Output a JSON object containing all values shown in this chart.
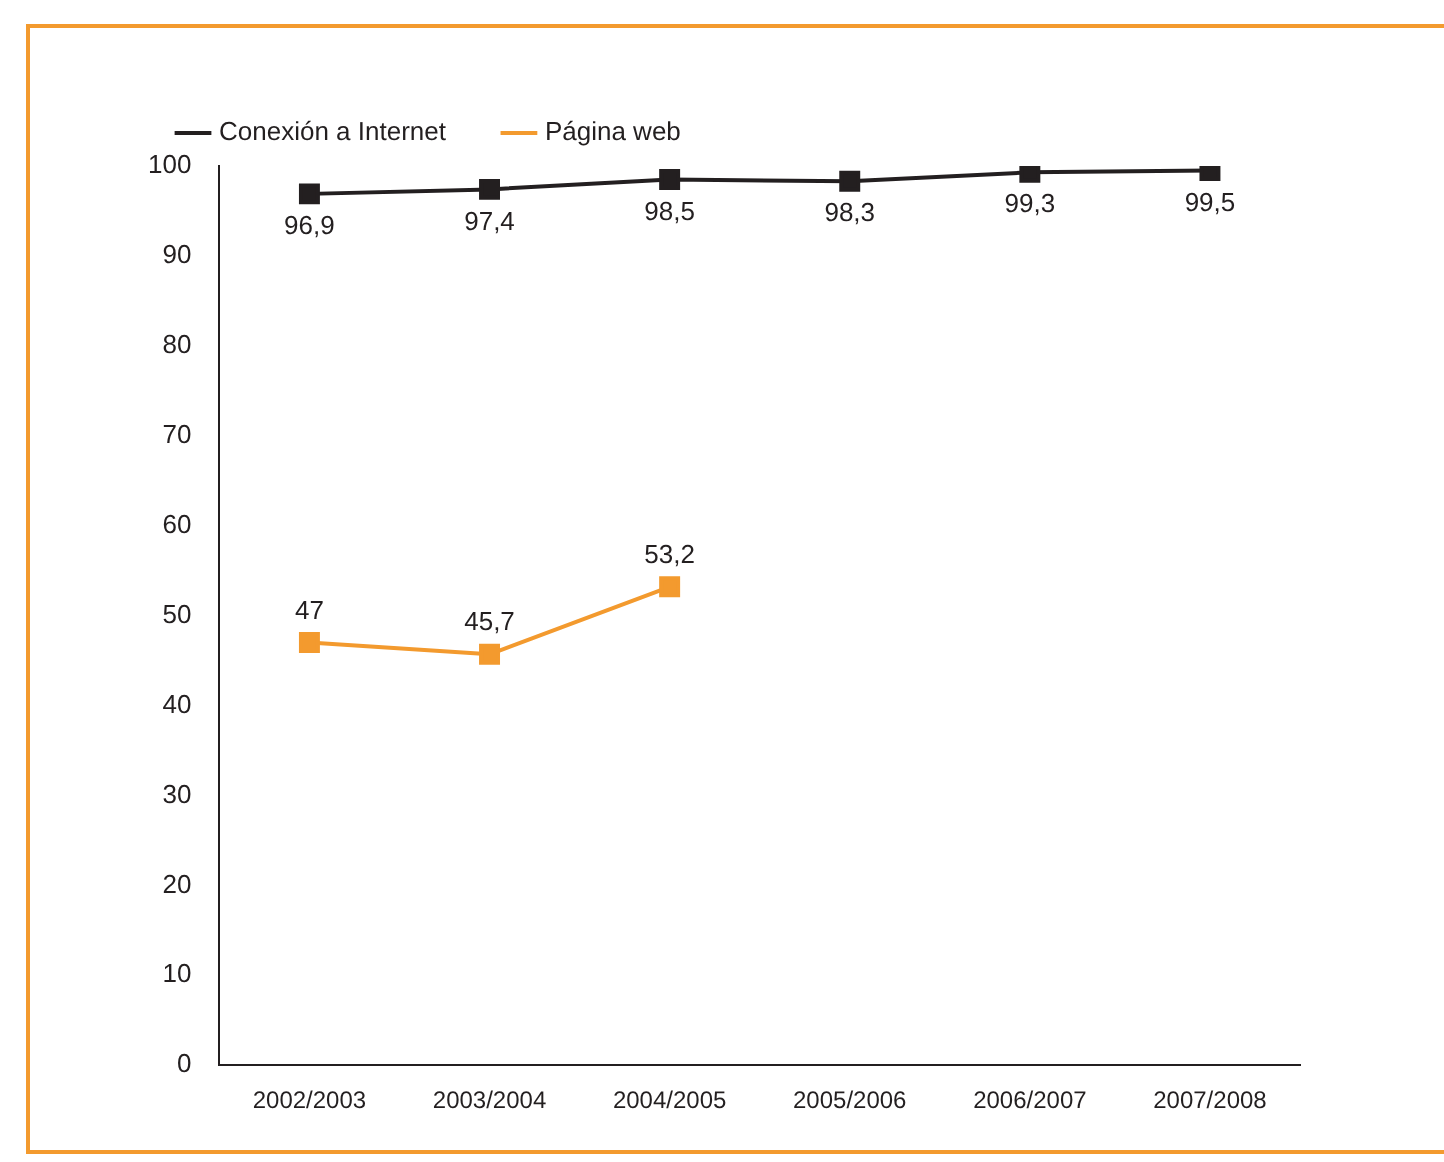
{
  "chart_data": {
    "type": "line",
    "categories": [
      "2002/2003",
      "2003/2004",
      "2004/2005",
      "2005/2006",
      "2006/2007",
      "2007/2008"
    ],
    "series": [
      {
        "name": "Conexión a Internet",
        "color": "#231f20",
        "values": [
          96.9,
          97.4,
          98.5,
          98.3,
          99.3,
          99.5
        ],
        "value_labels": [
          "96,9",
          "97,4",
          "98,5",
          "98,3",
          "99,3",
          "99,5"
        ]
      },
      {
        "name": "Página web",
        "color": "#f39a2e",
        "values": [
          47,
          45.7,
          53.2,
          null,
          null,
          null
        ],
        "value_labels": [
          "47",
          "45,7",
          "53,2",
          null,
          null,
          null
        ]
      }
    ],
    "ylim": [
      0,
      100
    ],
    "yticks": [
      0,
      10,
      20,
      30,
      40,
      50,
      60,
      70,
      80,
      90,
      100
    ],
    "grid": false,
    "legend": "top left",
    "marker": "square",
    "line_style": "solid"
  }
}
